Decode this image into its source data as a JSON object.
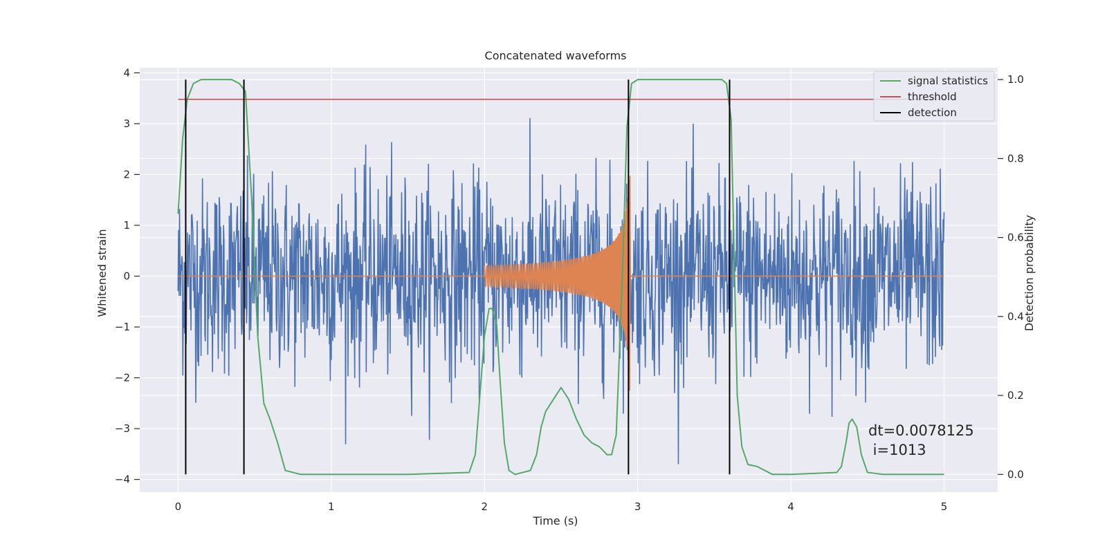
{
  "chart_data": {
    "type": "line",
    "title": "Concatenated waveforms",
    "xlabel": "Time (s)",
    "ylabel_left": "Whitened strain",
    "ylabel_right": "Detection probability",
    "xlim": [
      -0.25,
      5.35
    ],
    "ylim_left": [
      -4.25,
      4.1
    ],
    "ylim_right": [
      -0.045,
      1.03
    ],
    "x_ticks": [
      0,
      1,
      2,
      3,
      4,
      5
    ],
    "x_tick_labels": [
      "0",
      "1",
      "2",
      "3",
      "4",
      "5"
    ],
    "y_left_ticks": [
      4,
      3,
      2,
      1,
      0,
      -1,
      -2,
      -3,
      -4
    ],
    "y_left_tick_labels": [
      "4",
      "3",
      "2",
      "1",
      "0",
      "−1",
      "−2",
      "−3",
      "−4"
    ],
    "y_right_ticks": [
      1.0,
      0.8,
      0.6,
      0.4,
      0.2,
      0.0
    ],
    "y_right_tick_labels": [
      "1.0",
      "0.8",
      "0.6",
      "0.4",
      "0.2",
      "0.0"
    ],
    "grid": true,
    "legend_position": "top-right",
    "legend": [
      {
        "label": "signal statistics",
        "color": "#55a868"
      },
      {
        "label": "threshold",
        "color": "#c44e52"
      },
      {
        "label": "detection",
        "color": "#000000"
      }
    ],
    "series": [
      {
        "name": "whitened strain (noise)",
        "axis": "left",
        "color": "#4c72b0",
        "x_range": [
          0,
          5
        ],
        "approx_abs_max": 3.7
      },
      {
        "name": "injected waveform",
        "axis": "left",
        "color": "#dd8452",
        "x_range": [
          2.0,
          2.95
        ],
        "peak_amplitude": 2.3
      },
      {
        "name": "signal statistics",
        "axis": "right",
        "x": [
          0,
          0.03,
          0.06,
          0.1,
          0.15,
          0.35,
          0.4,
          0.44,
          0.48,
          0.52,
          0.56,
          0.6,
          0.65,
          0.7,
          0.8,
          1.5,
          1.9,
          1.94,
          1.97,
          2.0,
          2.03,
          2.05,
          2.08,
          2.1,
          2.13,
          2.16,
          2.2,
          2.3,
          2.34,
          2.37,
          2.4,
          2.45,
          2.5,
          2.55,
          2.6,
          2.65,
          2.7,
          2.75,
          2.8,
          2.83,
          2.86,
          2.9,
          2.93,
          2.96,
          3.0,
          3.55,
          3.58,
          3.61,
          3.63,
          3.65,
          3.68,
          3.72,
          3.78,
          3.83,
          3.88,
          4.0,
          4.3,
          4.33,
          4.36,
          4.38,
          4.4,
          4.43,
          4.46,
          4.5,
          4.6,
          5.0
        ],
        "y": [
          0.66,
          0.85,
          0.95,
          0.99,
          1.0,
          1.0,
          0.99,
          0.97,
          0.7,
          0.35,
          0.18,
          0.14,
          0.08,
          0.01,
          0.0,
          0.0,
          0.005,
          0.05,
          0.2,
          0.35,
          0.42,
          0.42,
          0.38,
          0.25,
          0.08,
          0.01,
          0.0,
          0.01,
          0.05,
          0.12,
          0.16,
          0.19,
          0.22,
          0.19,
          0.14,
          0.1,
          0.08,
          0.07,
          0.05,
          0.05,
          0.1,
          0.5,
          0.88,
          0.99,
          1.0,
          1.0,
          0.99,
          0.9,
          0.55,
          0.2,
          0.07,
          0.025,
          0.02,
          0.01,
          0.0,
          0.0,
          0.005,
          0.02,
          0.08,
          0.13,
          0.14,
          0.12,
          0.05,
          0.005,
          0.0,
          0.0
        ]
      },
      {
        "name": "threshold",
        "axis": "right",
        "color": "#c44e52",
        "value": 0.95,
        "x_range": [
          0,
          5
        ]
      }
    ],
    "detections": [
      0.05,
      0.43,
      2.94,
      3.6
    ],
    "annotation": [
      "dt=0.0078125",
      " i=1013"
    ]
  }
}
